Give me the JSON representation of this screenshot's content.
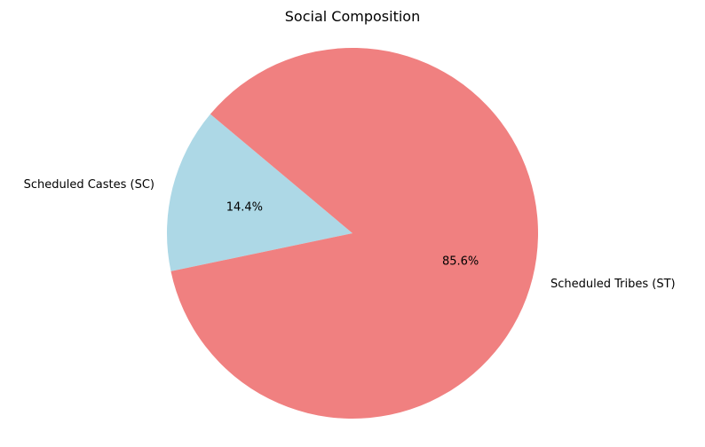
{
  "chart_data": {
    "type": "pie",
    "title": "Social Composition",
    "labels": [
      "Scheduled Castes (SC)",
      "Scheduled Tribes (ST)"
    ],
    "values": [
      14.4,
      85.6
    ],
    "percent_labels": [
      "14.4%",
      "85.6%"
    ],
    "colors": [
      "#add8e6",
      "#f08080"
    ],
    "start_angle_deg": 140,
    "direction": "counterclockwise",
    "legend": "none"
  }
}
